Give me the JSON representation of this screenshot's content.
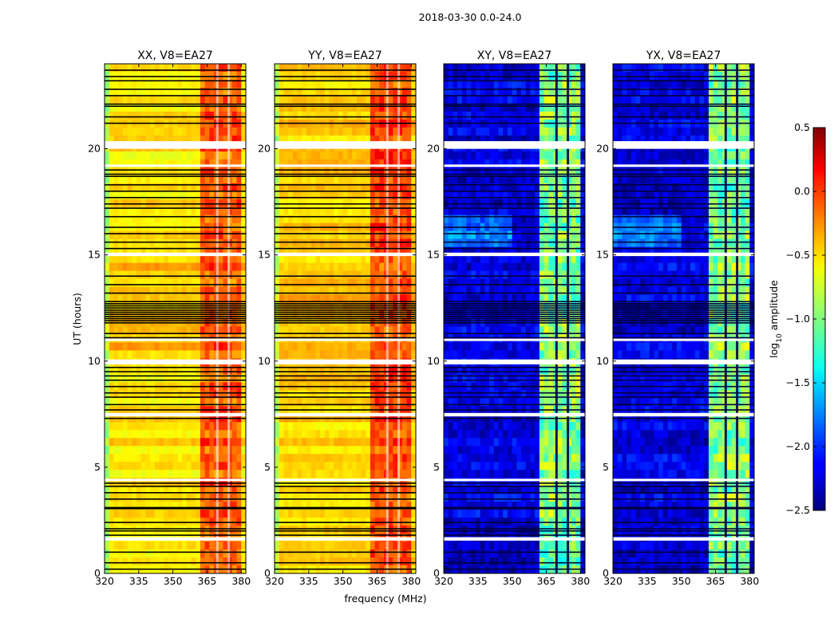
{
  "chart_data": {
    "type": "heatmap",
    "suptitle": "2018-03-30 0.0-24.0",
    "xlabel": "frequency (MHz)",
    "ylabel": "UT (hours)",
    "xlim": [
      320,
      382
    ],
    "ylim": [
      0,
      24
    ],
    "xticks": [
      320,
      335,
      350,
      365,
      380
    ],
    "yticks": [
      0,
      5,
      10,
      15,
      20
    ],
    "panels": [
      {
        "title": "XX, V8=EA27",
        "kind": "parallel",
        "base_log_amp": -0.55,
        "band_log_amp": -0.2
      },
      {
        "title": "YY, V8=EA27",
        "kind": "parallel",
        "base_log_amp": -0.5,
        "band_log_amp": -0.15
      },
      {
        "title": "XY, V8=EA27",
        "kind": "cross",
        "base_log_amp": -2.3,
        "band_log_amp": -1.0
      },
      {
        "title": "YX, V8=EA27",
        "kind": "cross",
        "base_log_amp": -2.3,
        "band_log_amp": -1.0
      }
    ],
    "band_freq_range_mhz": [
      363,
      380
    ],
    "colorbar": {
      "label": "log10 amplitude",
      "label_main": "log",
      "label_sub": "10",
      "label_rest": " amplitude",
      "range": [
        -2.5,
        0.5
      ],
      "ticks": [
        "0.5",
        "0.0",
        "−0.5",
        "−1.0",
        "−1.5",
        "−2.0",
        "−2.5"
      ],
      "tick_values": [
        0.5,
        0.0,
        -0.5,
        -1.0,
        -1.5,
        -2.0,
        -2.5
      ],
      "colormap": "jet"
    },
    "flagged_hours_white": [
      1.6,
      1.65,
      4.4,
      7.45,
      7.5,
      9.9,
      9.95,
      10.02,
      11.0,
      15.0,
      15.05,
      20.05,
      20.1,
      20.2,
      20.3,
      19.2
    ],
    "flagged_hours_dark": [
      0.2,
      0.5,
      1.0,
      1.8,
      2.0,
      2.1,
      2.4,
      3.05,
      3.1,
      3.5,
      3.8,
      4.1,
      4.25,
      7.3,
      7.7,
      7.95,
      8.3,
      8.5,
      8.8,
      9.1,
      9.3,
      9.5,
      9.7,
      11.1,
      11.3,
      11.8,
      11.9,
      12.0,
      12.1,
      12.2,
      12.3,
      12.4,
      12.5,
      12.6,
      12.7,
      12.8,
      13.2,
      13.6,
      14.0,
      15.3,
      15.6,
      16.0,
      16.3,
      16.8,
      17.2,
      17.4,
      17.7,
      18.0,
      18.3,
      18.7,
      18.8,
      19.0,
      21.2,
      21.5,
      22.0,
      22.1,
      22.5,
      22.8,
      23.2,
      23.4,
      23.7
    ]
  }
}
